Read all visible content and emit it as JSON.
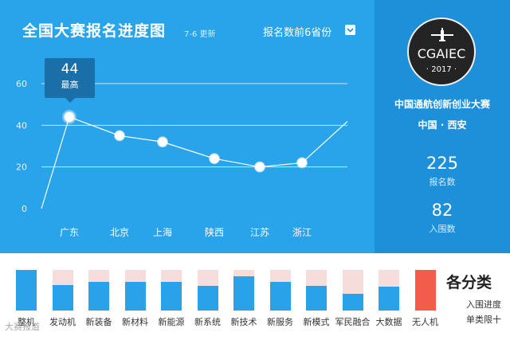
{
  "header": {
    "title": "全国大赛报名进度图",
    "update_note": "7-6 更新",
    "dropdown_label": "报名数前6省份"
  },
  "tooltip": {
    "value": "44",
    "label": "最高"
  },
  "chart_data": {
    "type": "line",
    "categories": [
      "广东",
      "北京",
      "上海",
      "陕西",
      "江苏",
      "浙江"
    ],
    "values": [
      44,
      35,
      32,
      24,
      20,
      22
    ],
    "ylim": [
      0,
      60
    ],
    "yticks": [
      "0",
      "20",
      "40",
      "60"
    ],
    "grid": true,
    "line_color": "#ffffff",
    "highlight_index": 0
  },
  "sidebar": {
    "logo_text": "CGAIEC",
    "logo_year": "· 2017 ·",
    "event_name": "中国通航创新创业大赛",
    "location": "中国 · 西安",
    "stats": [
      {
        "value": "225",
        "label": "报名数"
      },
      {
        "value": "82",
        "label": "入围数"
      }
    ]
  },
  "categories_panel": {
    "title": "各分类",
    "sub1": "入围进度",
    "sub2": "单类限十",
    "colors": {
      "fill": "#2aa2ea",
      "track": "#f7dcdc",
      "alert": "#f25c4a"
    },
    "items": [
      {
        "label": "整机",
        "progress": 1.0,
        "alert": false
      },
      {
        "label": "发动机",
        "progress": 0.62,
        "alert": false
      },
      {
        "label": "新装备",
        "progress": 0.7,
        "alert": false
      },
      {
        "label": "新材料",
        "progress": 0.7,
        "alert": false
      },
      {
        "label": "新能源",
        "progress": 0.7,
        "alert": false
      },
      {
        "label": "新系统",
        "progress": 0.6,
        "alert": false
      },
      {
        "label": "新技术",
        "progress": 0.85,
        "alert": false
      },
      {
        "label": "新服务",
        "progress": 0.7,
        "alert": false
      },
      {
        "label": "新模式",
        "progress": 0.6,
        "alert": false
      },
      {
        "label": "军民融合",
        "progress": 0.42,
        "alert": false
      },
      {
        "label": "大数据",
        "progress": 0.58,
        "alert": false
      },
      {
        "label": "无人机",
        "progress": 1.0,
        "alert": true
      }
    ]
  },
  "watermark": "大赛报道"
}
